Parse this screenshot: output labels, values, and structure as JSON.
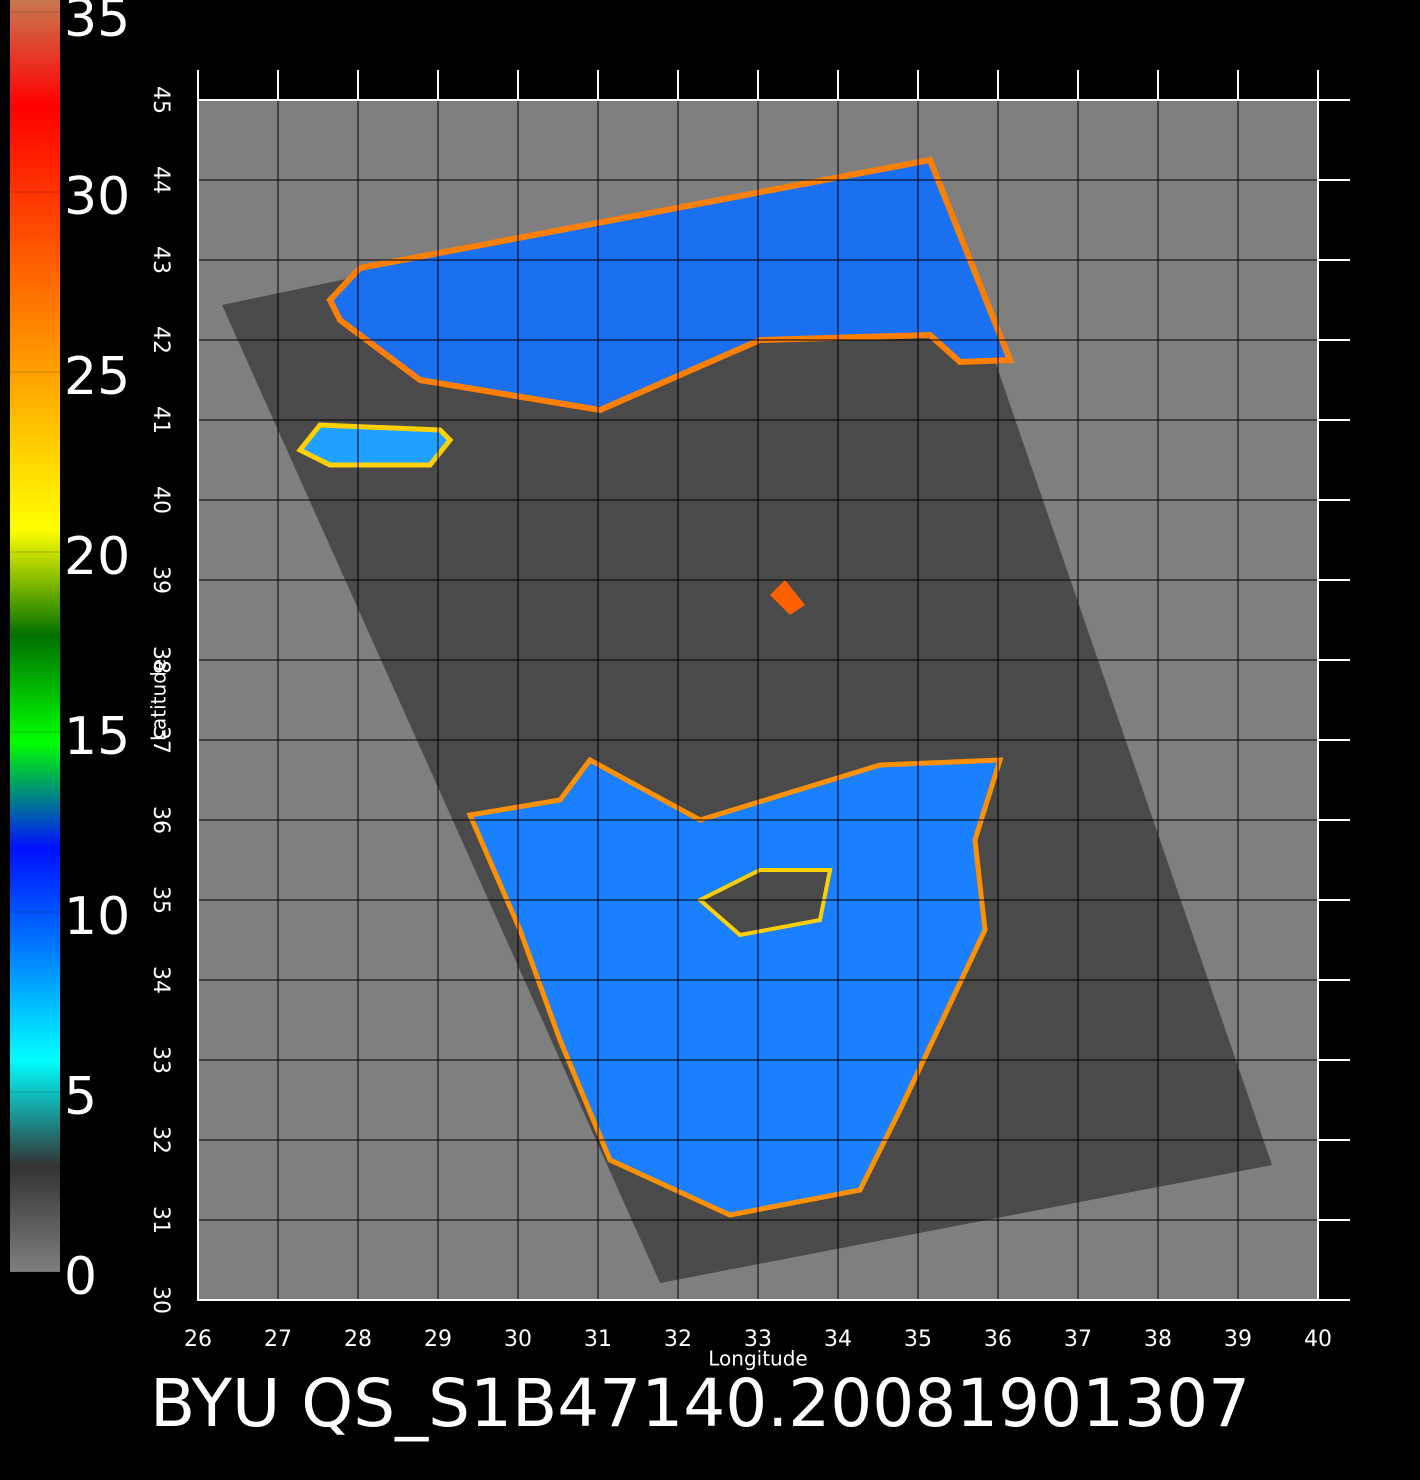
{
  "chart_data": {
    "type": "map",
    "title": "BYU QS_S1B47140.20081901307",
    "x_label": "Longitude",
    "y_label": "Latitude",
    "xlim": [
      26,
      40
    ],
    "ylim": [
      30,
      45
    ],
    "xticks": [
      26,
      27,
      28,
      29,
      30,
      31,
      32,
      33,
      34,
      35,
      36,
      37,
      38,
      39,
      40
    ],
    "yticks": [
      30,
      31,
      32,
      33,
      34,
      35,
      36,
      37,
      38,
      39,
      40,
      41,
      42,
      43,
      44,
      45
    ],
    "grid": true,
    "colorbar": {
      "lim": [
        0,
        35
      ],
      "ticks": [
        0,
        5,
        10,
        15,
        20,
        25,
        30,
        35
      ],
      "colors": [
        "#7f7f7f",
        "#333333",
        "#00ffff",
        "#0080ff",
        "#0010ff",
        "#00ff00",
        "#007000",
        "#ffff00",
        "#ffc000",
        "#ff8000",
        "#ff4000",
        "#ff0000",
        "#c87850"
      ]
    }
  }
}
